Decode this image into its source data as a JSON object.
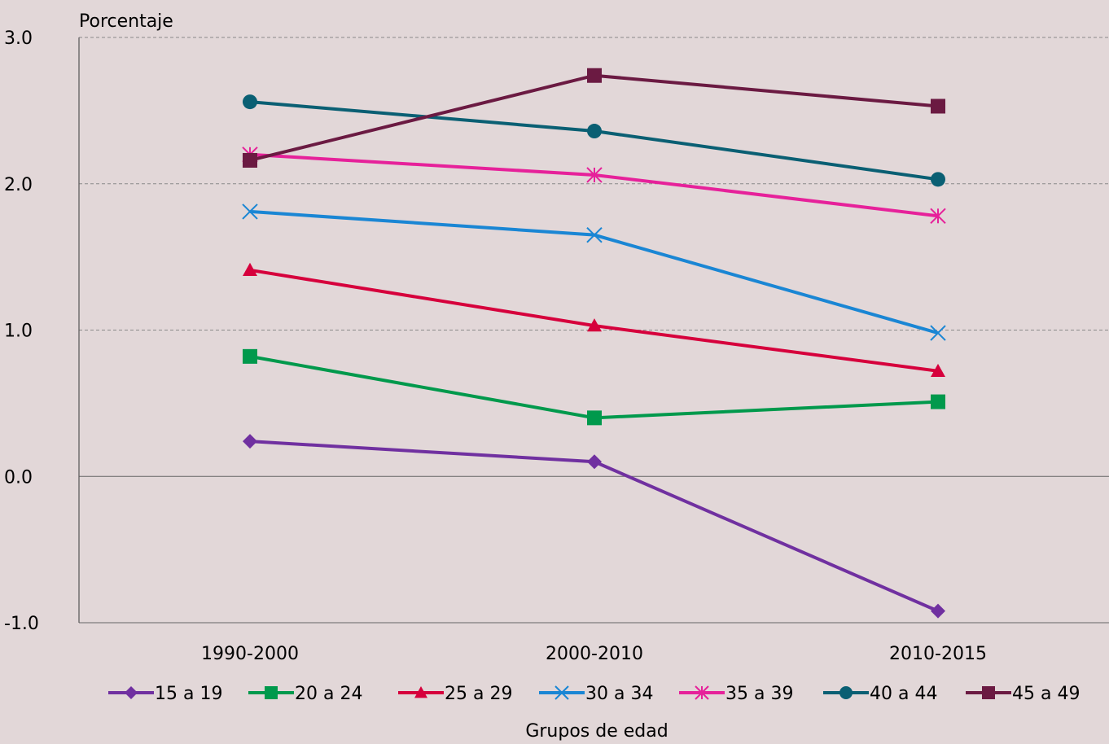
{
  "chart_data": {
    "type": "line",
    "ylabel": "Porcentaje",
    "xlabel": "Grupos de edad",
    "categories": [
      "1990-2000",
      "2000-2010",
      "2010-2015"
    ],
    "ylim": [
      -1.0,
      3.0
    ],
    "yticks": [
      "-1.0",
      "0.0",
      "1.0",
      "2.0",
      "3.0"
    ],
    "grid": true,
    "legend_position": "bottom",
    "series": [
      {
        "name": "15 a 19",
        "color": "#7030a0",
        "marker": "diamond",
        "values": [
          0.24,
          0.1,
          -0.92
        ]
      },
      {
        "name": "20 a  24",
        "color": "#00994c",
        "marker": "square",
        "values": [
          0.82,
          0.4,
          0.51
        ]
      },
      {
        "name": "25 a 29",
        "color": "#d6003c",
        "marker": "triangle",
        "values": [
          1.41,
          1.03,
          0.72
        ]
      },
      {
        "name": "30 a 34",
        "color": "#1a86d4",
        "marker": "x",
        "values": [
          1.81,
          1.65,
          0.98
        ]
      },
      {
        "name": "35 a 39",
        "color": "#e6219a",
        "marker": "star",
        "values": [
          2.2,
          2.06,
          1.78
        ]
      },
      {
        "name": "40 a 44",
        "color": "#0a5f73",
        "marker": "circle",
        "values": [
          2.56,
          2.36,
          2.03
        ]
      },
      {
        "name": "45 a 49",
        "color": "#6b1a42",
        "marker": "square",
        "values": [
          2.16,
          2.74,
          2.53
        ]
      }
    ]
  }
}
